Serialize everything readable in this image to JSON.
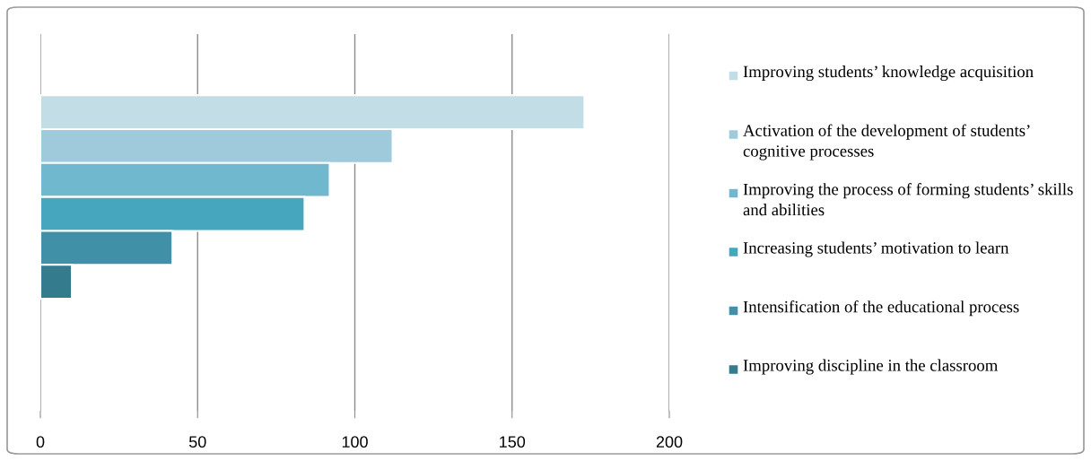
{
  "chart_data": {
    "type": "bar",
    "orientation": "horizontal",
    "categories": [
      null
    ],
    "series": [
      {
        "name": "Improving students’ knowledge acquisition",
        "color": "#c2dde6",
        "values": [
          173
        ]
      },
      {
        "name": "Activation of the development of students’ cognitive processes",
        "color": "#9ecadb",
        "values": [
          112
        ]
      },
      {
        "name": "Improving the process of forming students’ skills and abilities",
        "color": "#70b8cd",
        "values": [
          92
        ]
      },
      {
        "name": "Increasing students’ motivation to learn",
        "color": "#46a6bd",
        "values": [
          84
        ]
      },
      {
        "name": "Intensification of the educational process",
        "color": "#4091a8",
        "values": [
          42
        ]
      },
      {
        "name": "Improving discipline in the classroom",
        "color": "#347b8e",
        "values": [
          10
        ]
      }
    ],
    "xlim": [
      0,
      200
    ],
    "xticks": [
      0,
      50,
      100,
      150,
      200
    ],
    "grid": "x",
    "legend": "right"
  }
}
